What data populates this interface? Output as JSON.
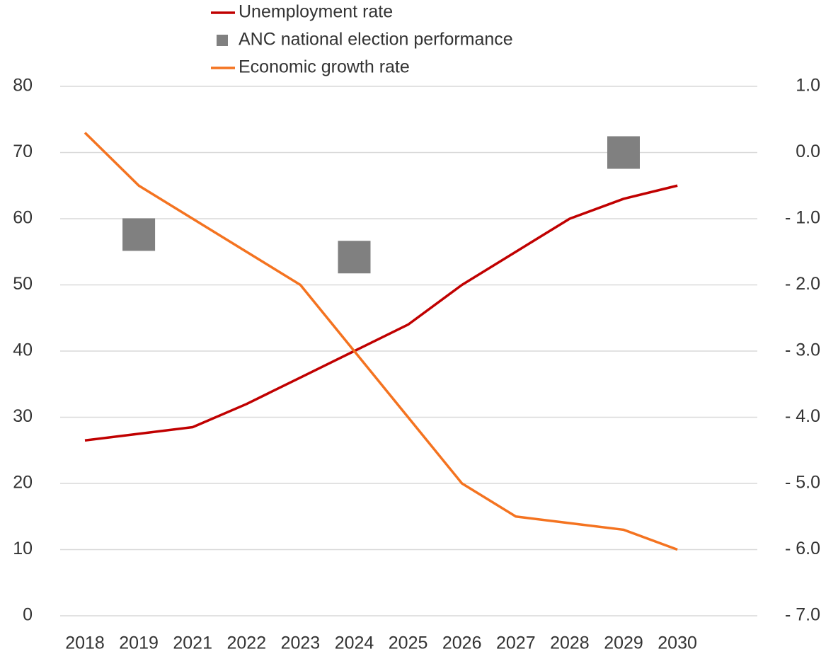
{
  "chart_data": {
    "type": "line",
    "categories": [
      "2018",
      "2019",
      "2021",
      "2022",
      "2023",
      "2024",
      "2025",
      "2026",
      "2027",
      "2028",
      "2029",
      "2030"
    ],
    "series": [
      {
        "name": "Unemployment rate",
        "type": "line",
        "color": "#c00000",
        "values": [
          26.5,
          27.5,
          28.5,
          32,
          36,
          40,
          44,
          50,
          55,
          60,
          63,
          65
        ]
      },
      {
        "name": "ANC national election performance",
        "type": "scatter",
        "color": "#808080",
        "values": [
          null,
          57.6,
          null,
          null,
          null,
          54.2,
          null,
          null,
          null,
          null,
          70.0,
          null
        ]
      },
      {
        "name": "Economic growth rate",
        "type": "line",
        "axis": "y2",
        "color": "#f47320",
        "values": [
          0.3,
          -0.5,
          -1.0,
          -1.5,
          -2.0,
          -3.0,
          -4.0,
          -5.0,
          -5.5,
          -5.6,
          -5.7,
          -6.0
        ]
      }
    ],
    "ylim": [
      0,
      80
    ],
    "yticks": [
      0,
      10,
      20,
      30,
      40,
      50,
      60,
      70,
      80
    ],
    "y2lim": [
      -7,
      1
    ],
    "y2ticks": [
      {
        "value": -7,
        "label": "- 7.0"
      },
      {
        "value": -6,
        "label": "- 6.0"
      },
      {
        "value": -5,
        "label": "- 5.0"
      },
      {
        "value": -4,
        "label": "- 4.0"
      },
      {
        "value": -3,
        "label": "- 3.0"
      },
      {
        "value": -2,
        "label": "- 2.0"
      },
      {
        "value": -1,
        "label": "- 1.0"
      },
      {
        "value": 0,
        "label": "0.0"
      },
      {
        "value": 1,
        "label": "1.0"
      }
    ],
    "grid": true,
    "legend": "top"
  }
}
